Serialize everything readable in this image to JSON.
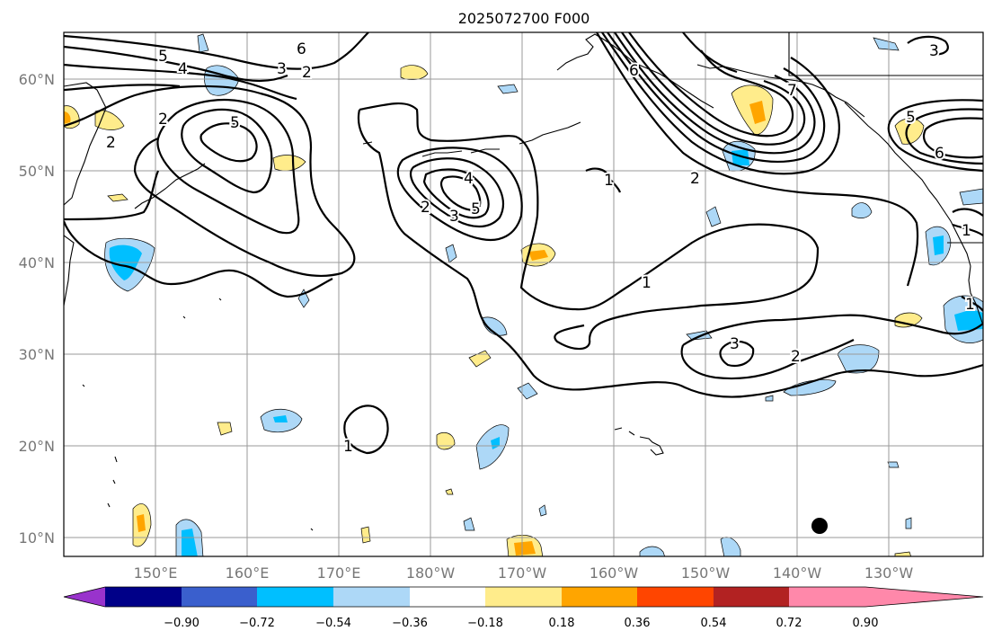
{
  "title": "2025072700 F000",
  "lat_labels": [
    "60°N",
    "50°N",
    "40°N",
    "30°N",
    "20°N",
    "10°N"
  ],
  "lon_labels": [
    "150°E",
    "160°E",
    "170°E",
    "180°W",
    "170°W",
    "160°W",
    "150°W",
    "140°W",
    "130°W"
  ],
  "colorbar": {
    "tick_labels": [
      "−0.90",
      "−0.72",
      "−0.54",
      "−0.36",
      "−0.18",
      "0.18",
      "0.36",
      "0.54",
      "0.72",
      "0.90"
    ],
    "colors": [
      "#9933cc",
      "#000088",
      "#3a5fcd",
      "#00bfff",
      "#add8f7",
      "#ffffff",
      "#ffec8b",
      "#ffa500",
      "#ff4500",
      "#b22222",
      "#ff88aa"
    ]
  },
  "contour_labels": {
    "c1": "5",
    "c2": "4",
    "c3": "3",
    "c4": "6",
    "c5": "2",
    "c6": "2",
    "c7": "2",
    "c8": "5",
    "c9": "4",
    "c10": "3",
    "c11": "5",
    "c12": "2",
    "c13": "6",
    "c14": "7",
    "c15": "1",
    "c16": "2",
    "c17": "1",
    "c18": "3",
    "c19": "2",
    "c20": "1",
    "c21": "3",
    "c22": "5",
    "c23": "6",
    "c24": "1",
    "c25": "1"
  }
}
